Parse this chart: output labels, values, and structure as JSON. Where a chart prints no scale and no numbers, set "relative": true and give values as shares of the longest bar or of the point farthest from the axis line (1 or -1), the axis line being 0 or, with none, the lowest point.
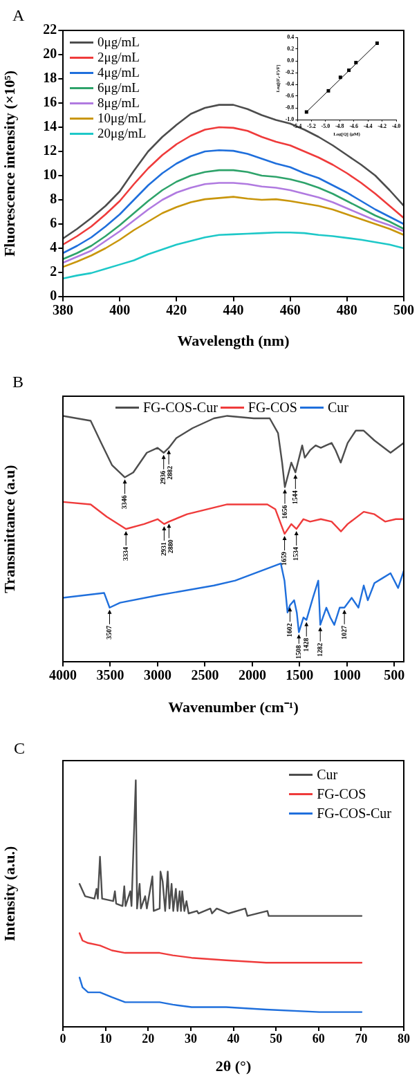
{
  "chart_data": [
    {
      "type": "line",
      "title": "A",
      "xlabel": "Wavelength (nm)",
      "ylabel": "Fluorescence intensity (×10⁵)",
      "x": [
        380,
        385,
        390,
        395,
        400,
        405,
        410,
        415,
        420,
        425,
        430,
        435,
        440,
        445,
        450,
        455,
        460,
        465,
        470,
        475,
        480,
        485,
        490,
        495,
        500
      ],
      "xlim": [
        380,
        500
      ],
      "xticks": [
        380,
        400,
        420,
        440,
        460,
        480,
        500
      ],
      "ylim": [
        0,
        22
      ],
      "yticks": [
        0,
        2,
        4,
        6,
        8,
        10,
        12,
        14,
        16,
        18,
        20,
        22
      ],
      "legend": "top left",
      "series": [
        {
          "name": "0μg/mL",
          "color": "#4d4d4d",
          "values": [
            4.8,
            5.6,
            6.5,
            7.5,
            8.7,
            10.4,
            12.0,
            13.2,
            14.2,
            15.1,
            15.6,
            15.85,
            15.85,
            15.5,
            15.0,
            14.6,
            14.3,
            13.8,
            13.2,
            12.5,
            11.7,
            10.9,
            10.0,
            8.8,
            7.5
          ]
        },
        {
          "name": "2μg/mL",
          "color": "#ef3b3b",
          "values": [
            4.3,
            5.0,
            5.8,
            6.8,
            7.9,
            9.3,
            10.6,
            11.7,
            12.6,
            13.3,
            13.8,
            14.0,
            13.95,
            13.7,
            13.2,
            12.8,
            12.5,
            12.0,
            11.5,
            10.9,
            10.2,
            9.4,
            8.5,
            7.5,
            6.5
          ]
        },
        {
          "name": "4μg/mL",
          "color": "#1f6fdc",
          "values": [
            3.6,
            4.2,
            4.9,
            5.8,
            6.8,
            8.0,
            9.2,
            10.2,
            11.0,
            11.6,
            12.0,
            12.1,
            12.05,
            11.8,
            11.4,
            11.0,
            10.7,
            10.2,
            9.8,
            9.2,
            8.6,
            7.9,
            7.2,
            6.6,
            6.0
          ]
        },
        {
          "name": "6μg/mL",
          "color": "#2ea36a",
          "values": [
            3.1,
            3.6,
            4.2,
            5.0,
            5.9,
            6.9,
            7.9,
            8.8,
            9.5,
            10.0,
            10.3,
            10.45,
            10.45,
            10.3,
            10.0,
            9.9,
            9.7,
            9.4,
            9.0,
            8.5,
            7.9,
            7.3,
            6.7,
            6.2,
            5.6
          ]
        },
        {
          "name": "8μg/mL",
          "color": "#b07ae0",
          "values": [
            2.8,
            3.3,
            3.8,
            4.6,
            5.4,
            6.3,
            7.2,
            8.0,
            8.6,
            9.0,
            9.3,
            9.4,
            9.4,
            9.3,
            9.1,
            9.0,
            8.8,
            8.5,
            8.2,
            7.8,
            7.3,
            6.8,
            6.3,
            5.9,
            5.4
          ]
        },
        {
          "name": "10μg/mL",
          "color": "#c9960c",
          "values": [
            2.45,
            2.9,
            3.4,
            4.0,
            4.7,
            5.5,
            6.2,
            6.9,
            7.4,
            7.8,
            8.05,
            8.15,
            8.25,
            8.1,
            8.0,
            8.05,
            7.9,
            7.7,
            7.5,
            7.2,
            6.8,
            6.4,
            6.0,
            5.6,
            5.1
          ]
        },
        {
          "name": "20μg/mL",
          "color": "#1ec8c8",
          "values": [
            1.5,
            1.75,
            1.95,
            2.3,
            2.65,
            3.0,
            3.5,
            3.9,
            4.3,
            4.6,
            4.9,
            5.1,
            5.15,
            5.2,
            5.25,
            5.3,
            5.3,
            5.25,
            5.1,
            5.0,
            4.85,
            4.7,
            4.5,
            4.3,
            4.0
          ]
        }
      ]
    },
    {
      "type": "scatter",
      "xlabel": "Log[Q] (μM)",
      "ylabel": "Log[(F₀-F)/F]",
      "marker": "square",
      "xlim": [
        -5.4,
        -4.0
      ],
      "xticks": [
        -5.4,
        -5.2,
        {
          "value": -5.0,
          "label": "-5.0"
        },
        -4.8,
        -4.6,
        -4.4,
        -4.2,
        {
          "value": -4.0,
          "label": "-4.0"
        }
      ],
      "ylim": [
        -1.0,
        0.4
      ],
      "yticks": [
        {
          "value": -1.0,
          "label": "-1.0"
        },
        -0.8,
        -0.6,
        -0.4,
        -0.2,
        {
          "value": 0,
          "label": "0.0"
        },
        0.2,
        0.4
      ],
      "series": [
        {
          "color": "#000000",
          "x": [
            -5.27,
            -4.96,
            -4.79,
            -4.67,
            -4.57,
            -4.27
          ],
          "values": [
            -0.87,
            -0.51,
            -0.28,
            -0.16,
            -0.03,
            0.3
          ]
        },
        {
          "type": "line",
          "marker": "none",
          "color": "#000000",
          "x": [
            -5.27,
            -4.27
          ],
          "values": [
            -0.87,
            0.3
          ]
        }
      ]
    },
    {
      "type": "line",
      "title": "B",
      "xlabel": "Wavenumber (cm⁻¹)",
      "ylabel": "Transmittance (a.u)",
      "relative": true,
      "xlim": [
        4000,
        400
      ],
      "xticks": [
        4000,
        3500,
        3000,
        2500,
        2000,
        1500,
        1000,
        500
      ],
      "legend": "top",
      "series": [
        {
          "name": "FG-COS-Cur",
          "color": "#4d4d4d",
          "x": [
            4000,
            3707,
            3596,
            3482,
            3346,
            3257,
            3114,
            3000,
            2936,
            2882,
            2802,
            2632,
            2405,
            2265,
            1985,
            1816,
            1728,
            1685,
            1656,
            1588,
            1544,
            1473,
            1445,
            1390,
            1331,
            1276,
            1221,
            1162,
            1120,
            1066,
            993,
            907,
            823,
            710,
            540,
            400
          ],
          "values": [
            1.0,
            0.98,
            0.89,
            0.8,
            0.75,
            0.77,
            0.85,
            0.87,
            0.85,
            0.87,
            0.91,
            0.95,
            0.99,
            1.0,
            0.99,
            0.99,
            0.93,
            0.81,
            0.71,
            0.81,
            0.77,
            0.88,
            0.83,
            0.86,
            0.88,
            0.87,
            0.88,
            0.89,
            0.86,
            0.81,
            0.89,
            0.94,
            0.94,
            0.9,
            0.85,
            0.89
          ]
        },
        {
          "name": "FG-COS",
          "color": "#ef3b3b",
          "x": [
            4000,
            3707,
            3538,
            3334,
            3142,
            3000,
            2931,
            2880,
            2689,
            2265,
            1841,
            1756,
            1659,
            1588,
            1534,
            1460,
            1389,
            1276,
            1162,
            1063,
            993,
            823,
            710,
            597,
            484,
            400
          ],
          "values": [
            0.65,
            0.64,
            0.59,
            0.54,
            0.56,
            0.58,
            0.56,
            0.57,
            0.6,
            0.64,
            0.64,
            0.62,
            0.52,
            0.56,
            0.54,
            0.58,
            0.57,
            0.58,
            0.57,
            0.53,
            0.56,
            0.61,
            0.6,
            0.57,
            0.58,
            0.58
          ]
        },
        {
          "name": "Cur",
          "color": "#1f6fdc",
          "x": [
            4000,
            3565,
            3507,
            3396,
            3000,
            2405,
            2180,
            1699,
            1660,
            1628,
            1602,
            1558,
            1530,
            1508,
            1460,
            1428,
            1360,
            1303,
            1282,
            1218,
            1176,
            1134,
            1077,
            1027,
            950,
            879,
            823,
            780,
            710,
            625,
            540,
            460,
            400
          ],
          "values": [
            0.26,
            0.28,
            0.22,
            0.24,
            0.27,
            0.31,
            0.33,
            0.4,
            0.33,
            0.2,
            0.23,
            0.25,
            0.2,
            0.12,
            0.18,
            0.17,
            0.26,
            0.33,
            0.15,
            0.22,
            0.18,
            0.15,
            0.22,
            0.22,
            0.26,
            0.22,
            0.31,
            0.25,
            0.32,
            0.34,
            0.36,
            0.3,
            0.37
          ]
        }
      ],
      "annotations": [
        {
          "text": "3346",
          "x": 3346,
          "y": 0.75
        },
        {
          "text": "2936",
          "x": 2936,
          "y": 0.85
        },
        {
          "text": "2882",
          "x": 2882,
          "y": 0.87
        },
        {
          "text": "1656",
          "x": 1656,
          "y": 0.71
        },
        {
          "text": "1544",
          "x": 1544,
          "y": 0.77
        },
        {
          "text": "3334",
          "x": 3334,
          "y": 0.54
        },
        {
          "text": "2931",
          "x": 2931,
          "y": 0.56
        },
        {
          "text": "2880",
          "x": 2880,
          "y": 0.57
        },
        {
          "text": "1659",
          "x": 1659,
          "y": 0.52
        },
        {
          "text": "1534",
          "x": 1534,
          "y": 0.54
        },
        {
          "text": "3507",
          "x": 3507,
          "y": 0.22
        },
        {
          "text": "1602",
          "x": 1602,
          "y": 0.23
        },
        {
          "text": "1508",
          "x": 1508,
          "y": 0.12
        },
        {
          "text": "1428",
          "x": 1428,
          "y": 0.17
        },
        {
          "text": "1282",
          "x": 1282,
          "y": 0.15
        },
        {
          "text": "1027",
          "x": 1027,
          "y": 0.22
        }
      ]
    },
    {
      "type": "line",
      "title": "C",
      "xlabel": "2θ (°)",
      "ylabel": "Intensity (a.u.)",
      "relative": true,
      "xlim": [
        0,
        80
      ],
      "xticks": [
        0,
        10,
        20,
        30,
        40,
        50,
        60,
        70,
        80
      ],
      "legend": "top right",
      "series": [
        {
          "name": "Cur",
          "color": "#4d4d4d",
          "x": [
            3.9,
            5.2,
            7.4,
            7.9,
            8.2,
            8.7,
            9.2,
            11.8,
            12.2,
            12.5,
            14.0,
            14.4,
            14.7,
            15.8,
            16.1,
            17.1,
            17.4,
            18.0,
            18.3,
            19.3,
            19.7,
            21.0,
            21.3,
            22.7,
            22.9,
            23.4,
            24.0,
            24.6,
            25.0,
            25.5,
            25.9,
            26.5,
            26.9,
            27.4,
            27.7,
            28.0,
            28.5,
            29.0,
            29.5,
            31.5,
            31.8,
            34.6,
            35.0,
            36.1,
            38.9,
            42.8,
            43.3,
            48.0,
            48.3,
            53.9,
            60.2,
            70.1
          ],
          "values": [
            0.58,
            0.53,
            0.52,
            0.56,
            0.52,
            0.69,
            0.52,
            0.51,
            0.55,
            0.5,
            0.49,
            0.57,
            0.49,
            0.55,
            0.49,
            1.0,
            0.48,
            0.58,
            0.48,
            0.53,
            0.48,
            0.61,
            0.47,
            0.48,
            0.63,
            0.59,
            0.47,
            0.63,
            0.48,
            0.58,
            0.47,
            0.56,
            0.47,
            0.55,
            0.47,
            0.55,
            0.47,
            0.51,
            0.46,
            0.47,
            0.46,
            0.48,
            0.46,
            0.48,
            0.46,
            0.48,
            0.45,
            0.47,
            0.45,
            0.45,
            0.45,
            0.45
          ]
        },
        {
          "name": "FG-COS",
          "color": "#ef3b3b",
          "x": [
            3.9,
            4.6,
            5.9,
            8.7,
            11.5,
            14.6,
            19.6,
            22.7,
            25.8,
            30.2,
            38.3,
            47.7,
            60.2,
            70.1
          ],
          "values": [
            0.38,
            0.35,
            0.34,
            0.33,
            0.31,
            0.3,
            0.3,
            0.3,
            0.29,
            0.28,
            0.27,
            0.26,
            0.26,
            0.26
          ]
        },
        {
          "name": "FG-COS-Cur",
          "color": "#1f6fdc",
          "x": [
            3.9,
            4.6,
            5.9,
            8.7,
            11.5,
            14.6,
            19.6,
            22.7,
            25.8,
            30.2,
            38.3,
            47.7,
            60.2,
            70.1
          ],
          "values": [
            0.2,
            0.16,
            0.14,
            0.14,
            0.12,
            0.1,
            0.1,
            0.1,
            0.09,
            0.08,
            0.08,
            0.07,
            0.06,
            0.06
          ]
        }
      ]
    }
  ]
}
